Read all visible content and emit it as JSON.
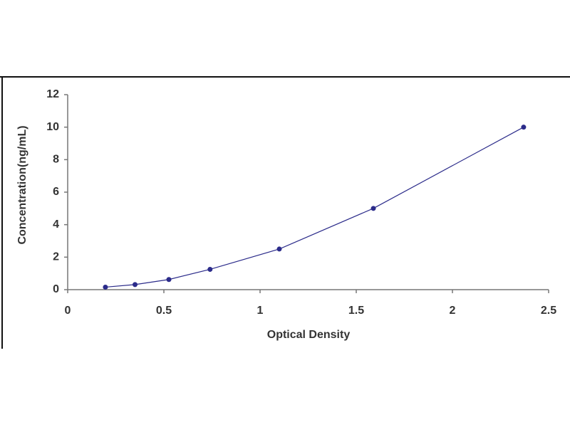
{
  "chart_data": {
    "type": "scatter",
    "x_label": "Optical Density",
    "y_label": "Concentration(ng/mL)",
    "series": [
      {
        "x": [
          0.196,
          0.35,
          0.526,
          0.74,
          1.1,
          1.589,
          2.37
        ],
        "values": [
          0.156,
          0.312,
          0.625,
          1.25,
          2.5,
          5,
          10
        ],
        "color": "#2b2b8a"
      }
    ],
    "connect": true,
    "xlim": [
      0,
      2.5
    ],
    "xticks": [
      0,
      0.5,
      1,
      1.5,
      2,
      2.5
    ],
    "ylim": [
      0,
      12
    ],
    "yticks": [
      0,
      2,
      4,
      6,
      8,
      10,
      12
    ]
  }
}
